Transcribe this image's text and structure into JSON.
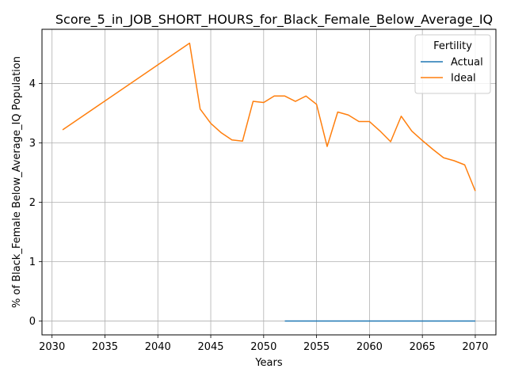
{
  "chart_data": {
    "type": "line",
    "title": "Score_5_in_JOB_SHORT_HOURS_for_Black_Female_Below_Average_IQ",
    "xlabel": "Years",
    "ylabel": "% of Black_Female Below_Average_IQ Population",
    "xlim": [
      2029.05,
      2071.95
    ],
    "ylim": [
      -0.234,
      4.914
    ],
    "xticks": [
      2030,
      2035,
      2040,
      2045,
      2050,
      2055,
      2060,
      2065,
      2070
    ],
    "yticks": [
      0,
      1,
      2,
      3,
      4
    ],
    "grid": true,
    "legend": {
      "title": "Fertility",
      "placement": "top-right"
    },
    "series": [
      {
        "name": "Actual",
        "color": "#1f77b4",
        "x": [
          2052,
          2053,
          2054,
          2055,
          2056,
          2057,
          2058,
          2059,
          2060,
          2061,
          2062,
          2063,
          2064,
          2065,
          2066,
          2067,
          2068,
          2069,
          2070
        ],
        "y": [
          0,
          0,
          0,
          0,
          0,
          0,
          0,
          0,
          0,
          0,
          0,
          0,
          0,
          0,
          0,
          0,
          0,
          0,
          0
        ]
      },
      {
        "name": "Ideal",
        "color": "#ff7f0e",
        "x": [
          2031,
          2043,
          2044,
          2045,
          2046,
          2047,
          2048,
          2049,
          2050,
          2051,
          2052,
          2053,
          2054,
          2055,
          2056,
          2057,
          2058,
          2059,
          2060,
          2061,
          2062,
          2063,
          2064,
          2065,
          2066,
          2067,
          2068,
          2069,
          2070
        ],
        "y": [
          3.22,
          4.68,
          3.57,
          3.33,
          3.17,
          3.05,
          3.03,
          3.7,
          3.68,
          3.79,
          3.79,
          3.7,
          3.79,
          3.65,
          2.94,
          3.52,
          3.47,
          3.36,
          3.36,
          3.2,
          3.02,
          3.45,
          3.2,
          3.04,
          2.89,
          2.75,
          2.7,
          2.63,
          2.19
        ]
      }
    ]
  }
}
